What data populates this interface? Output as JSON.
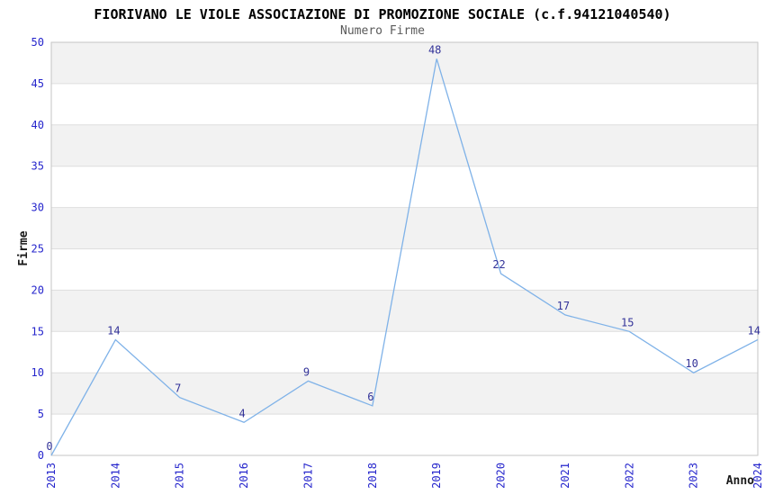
{
  "chart_data": {
    "type": "line",
    "title": "FIORIVANO LE VIOLE ASSOCIAZIONE DI PROMOZIONE SOCIALE (c.f.94121040540)",
    "subtitle": "Numero Firme",
    "xlabel": "Anno",
    "ylabel": "Firme",
    "categories": [
      "2013",
      "2014",
      "2015",
      "2016",
      "2017",
      "2018",
      "2019",
      "2020",
      "2021",
      "2022",
      "2023",
      "2024"
    ],
    "values": [
      0,
      14,
      7,
      4,
      9,
      6,
      48,
      22,
      17,
      15,
      10,
      14
    ],
    "ylim": [
      0,
      50
    ],
    "ytick_step": 5,
    "yticks": [
      0,
      5,
      10,
      15,
      20,
      25,
      30,
      35,
      40,
      45,
      50
    ],
    "grid": "horizontal-lines-with-alternating-bands",
    "legend_position": "none",
    "point_labels_shown": true,
    "x_tick_rotation_deg": -90,
    "colors": {
      "line": "#7fb2e8",
      "point_label": "#333399",
      "tick_label": "#2525cc",
      "title": "#000000",
      "subtitle": "#5a5a5a",
      "axis_title": "#1a1a1a",
      "band": "#f2f2f2",
      "gridline": "#dedede",
      "border": "#c4c4c4",
      "background": "#ffffff"
    }
  }
}
